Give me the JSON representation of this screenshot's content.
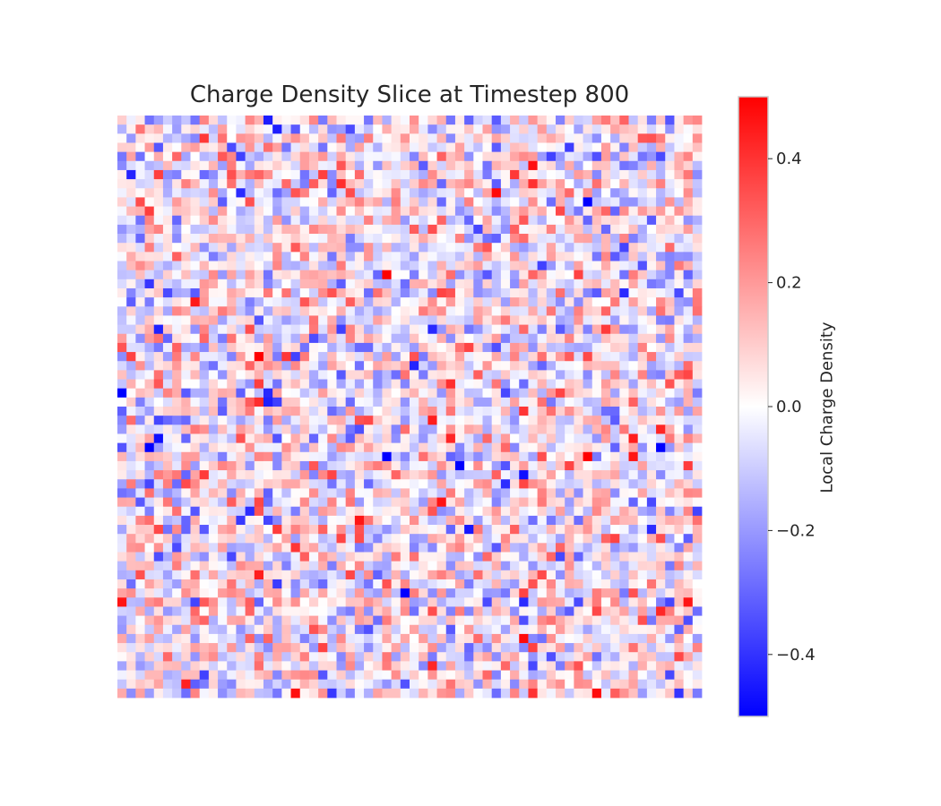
{
  "chart_data": {
    "type": "heatmap",
    "title": "Charge Density Slice at Timestep 800",
    "xlabel": "",
    "ylabel": "",
    "grid": {
      "rows": 64,
      "cols": 64,
      "seed": 800
    },
    "axes_visible": false,
    "colormap": "bwr",
    "colormap_stops": [
      "#0000ff",
      "#ffffff",
      "#ff0000"
    ],
    "value_range": [
      -0.5,
      0.5
    ],
    "colorbar": {
      "label": "Local Charge Density",
      "placement": "right",
      "ticks": [
        0.4,
        0.2,
        0.0,
        -0.2,
        -0.4
      ],
      "tick_labels": [
        "0.4",
        "0.2",
        "0.0",
        "−0.2",
        "−0.4"
      ]
    }
  }
}
